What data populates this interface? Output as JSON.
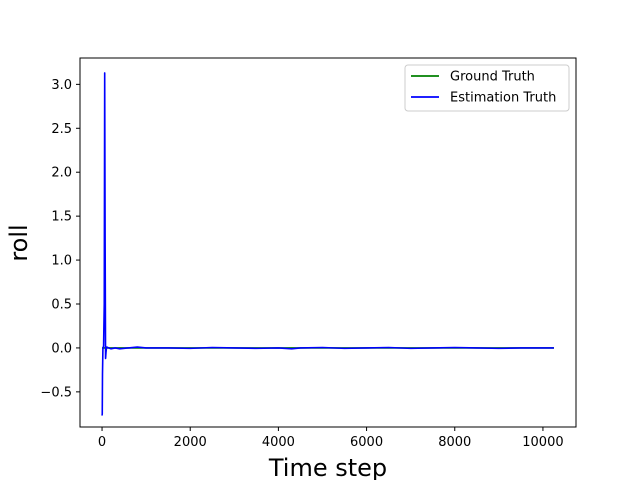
{
  "chart_data": {
    "type": "line",
    "title": "",
    "xlabel": "Time step",
    "ylabel": "roll",
    "xlim": [
      -500,
      10750
    ],
    "ylim": [
      -0.9,
      3.3
    ],
    "xticks": [
      0,
      2000,
      4000,
      6000,
      8000,
      10000
    ],
    "xtick_labels": [
      "0",
      "2000",
      "4000",
      "6000",
      "8000",
      "10000"
    ],
    "yticks": [
      -0.5,
      0.0,
      0.5,
      1.0,
      1.5,
      2.0,
      2.5,
      3.0
    ],
    "ytick_labels": [
      "−0.5",
      "0.0",
      "0.5",
      "1.0",
      "1.5",
      "2.0",
      "2.5",
      "3.0"
    ],
    "grid": false,
    "legend_position": "top-right",
    "series": [
      {
        "name": "Ground Truth",
        "color": "#008000",
        "x": [
          0,
          10250
        ],
        "y": [
          0.0,
          0.0
        ]
      },
      {
        "name": "Estimation Truth",
        "color": "#0000ff",
        "x": [
          0,
          5,
          10,
          20,
          35,
          50,
          60,
          70,
          80,
          90,
          100,
          110,
          150,
          200,
          300,
          400,
          600,
          800,
          1000,
          1500,
          2000,
          2500,
          3000,
          3500,
          4000,
          4300,
          4500,
          5000,
          5500,
          6000,
          6500,
          7000,
          7500,
          8000,
          8500,
          9000,
          9500,
          10000,
          10250
        ],
        "y": [
          -0.77,
          -0.75,
          -0.3,
          0.0,
          0.02,
          0.5,
          3.13,
          1.2,
          -0.12,
          -0.05,
          0.0,
          0.01,
          0.0,
          -0.01,
          0.0,
          -0.01,
          0.0,
          0.01,
          0.0,
          0.0,
          -0.005,
          0.005,
          0.0,
          -0.005,
          0.0,
          -0.01,
          0.0,
          0.005,
          -0.005,
          0.0,
          0.005,
          -0.005,
          0.0,
          0.005,
          0.0,
          -0.005,
          0.0,
          0.0,
          0.0
        ]
      }
    ]
  }
}
